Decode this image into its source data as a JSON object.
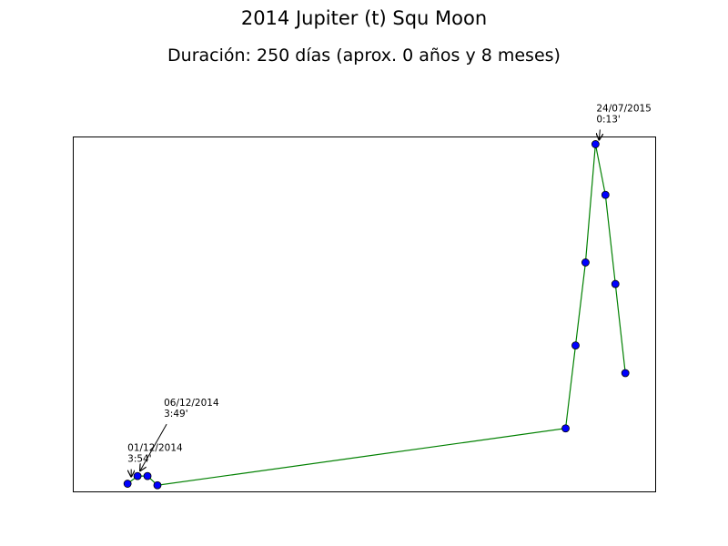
{
  "chart_data": {
    "type": "line",
    "title": "2014 Jupiter (t) Squ Moon",
    "subtitle": "Duración: 250 días (aprox. 0 años y 8 meses)",
    "xlabel": "",
    "ylabel": "",
    "grid": false,
    "x_day_offset": [
      0,
      1,
      2,
      3,
      44,
      45,
      46,
      47,
      48,
      49,
      50
    ],
    "orb_minutes": [
      234,
      229,
      229,
      235,
      198,
      144,
      90,
      13,
      46,
      104,
      162
    ],
    "xlim": [
      -5.5,
      53
    ],
    "ylim": [
      239,
      8
    ],
    "line_color": "#008000",
    "marker_color": "#0000ff",
    "annotations": [
      {
        "point": 0,
        "date": "01/12/2014",
        "value": "3:54'"
      },
      {
        "point": 1,
        "date": "06/12/2014",
        "value": "3:49'"
      },
      {
        "point": 7,
        "date": "24/07/2015",
        "value": "0:13'"
      }
    ]
  }
}
